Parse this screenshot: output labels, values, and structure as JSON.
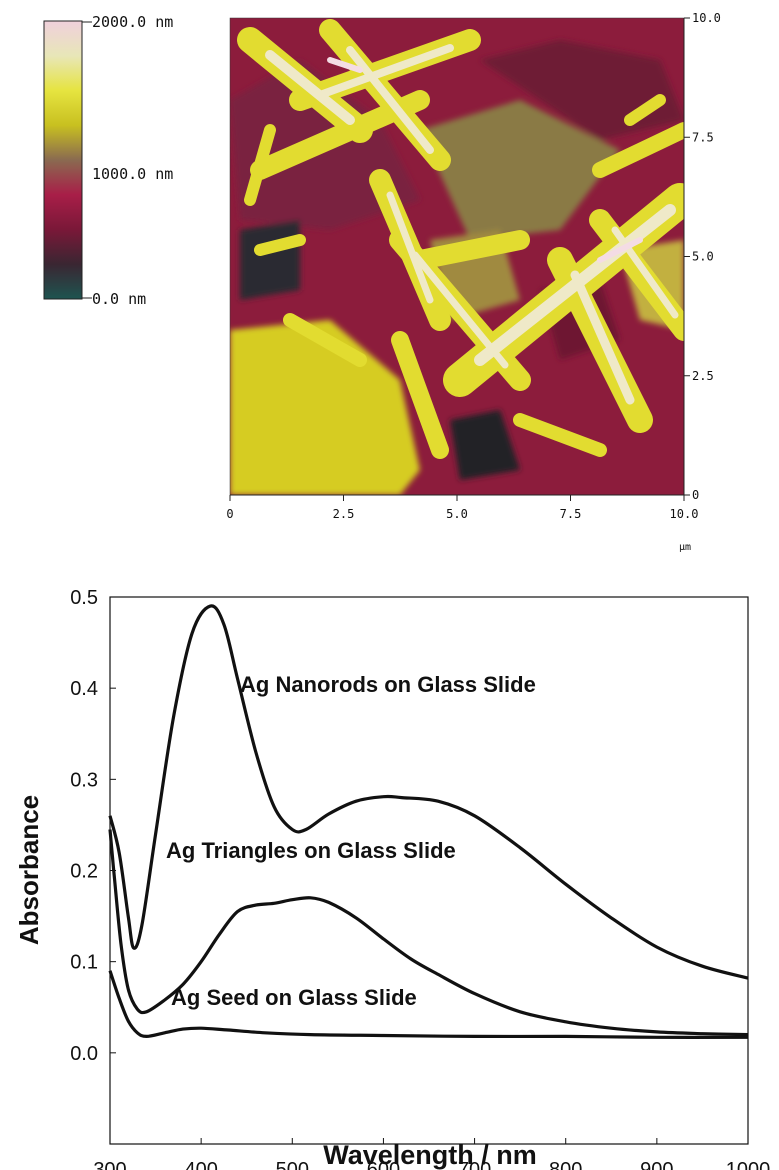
{
  "colorbar": {
    "labels": [
      "2000.0 nm",
      "1000.0 nm",
      "0.0 nm"
    ],
    "colors": [
      "#1e5450",
      "#3a2632",
      "#7a1838",
      "#a81e48",
      "#8a6a50",
      "#c8c020",
      "#e6e440",
      "#e8e6b8",
      "#f0d0dc"
    ]
  },
  "afm": {
    "x_ticks": [
      "0",
      "2.5",
      "5.0",
      "7.5",
      "10.0"
    ],
    "y_ticks": [
      "0",
      "2.5",
      "5.0",
      "7.5",
      "10.0"
    ],
    "x_unit": "μm",
    "colors": {
      "bg_red": "#8c1c3c",
      "bg_yellow": "#d8d020",
      "rod_yellow": "#e6e238",
      "rod_glow": "#f2eecc",
      "dark": "#2a2a30",
      "olive": "#8a7a40"
    }
  },
  "chart_data": {
    "type": "line",
    "xlabel": "Wavelength / nm",
    "ylabel": "Absorbance",
    "xlim": [
      300,
      1000
    ],
    "ylim": [
      -0.1,
      0.5
    ],
    "x_ticks": [
      "300",
      "400",
      "500",
      "600",
      "700",
      "800",
      "900",
      "1000"
    ],
    "y_ticks": [
      "0.5",
      "0.4",
      "0.3",
      "0.2",
      "0.1",
      "0.0"
    ],
    "series": [
      {
        "name": "Ag Nanorods on Glass Slide",
        "points": [
          [
            300,
            0.26
          ],
          [
            310,
            0.22
          ],
          [
            320,
            0.15
          ],
          [
            326,
            0.115
          ],
          [
            335,
            0.14
          ],
          [
            350,
            0.24
          ],
          [
            370,
            0.37
          ],
          [
            390,
            0.46
          ],
          [
            410,
            0.49
          ],
          [
            425,
            0.47
          ],
          [
            440,
            0.41
          ],
          [
            460,
            0.33
          ],
          [
            480,
            0.27
          ],
          [
            500,
            0.245
          ],
          [
            515,
            0.245
          ],
          [
            540,
            0.262
          ],
          [
            570,
            0.276
          ],
          [
            600,
            0.281
          ],
          [
            620,
            0.28
          ],
          [
            660,
            0.276
          ],
          [
            700,
            0.26
          ],
          [
            750,
            0.225
          ],
          [
            800,
            0.185
          ],
          [
            850,
            0.148
          ],
          [
            900,
            0.116
          ],
          [
            950,
            0.095
          ],
          [
            1000,
            0.082
          ]
        ]
      },
      {
        "name": "Ag Triangles on Glass Slide",
        "points": [
          [
            300,
            0.245
          ],
          [
            305,
            0.19
          ],
          [
            312,
            0.12
          ],
          [
            320,
            0.07
          ],
          [
            330,
            0.048
          ],
          [
            340,
            0.045
          ],
          [
            360,
            0.058
          ],
          [
            380,
            0.075
          ],
          [
            400,
            0.1
          ],
          [
            420,
            0.13
          ],
          [
            440,
            0.155
          ],
          [
            460,
            0.162
          ],
          [
            480,
            0.164
          ],
          [
            500,
            0.168
          ],
          [
            520,
            0.17
          ],
          [
            540,
            0.165
          ],
          [
            570,
            0.148
          ],
          [
            600,
            0.125
          ],
          [
            630,
            0.103
          ],
          [
            660,
            0.086
          ],
          [
            700,
            0.065
          ],
          [
            750,
            0.045
          ],
          [
            800,
            0.034
          ],
          [
            850,
            0.027
          ],
          [
            900,
            0.023
          ],
          [
            950,
            0.021
          ],
          [
            1000,
            0.02
          ]
        ]
      },
      {
        "name": "Ag Seed on Glass Slide",
        "points": [
          [
            300,
            0.09
          ],
          [
            310,
            0.06
          ],
          [
            320,
            0.035
          ],
          [
            330,
            0.022
          ],
          [
            340,
            0.018
          ],
          [
            360,
            0.022
          ],
          [
            380,
            0.026
          ],
          [
            400,
            0.027
          ],
          [
            430,
            0.025
          ],
          [
            470,
            0.022
          ],
          [
            520,
            0.02
          ],
          [
            600,
            0.019
          ],
          [
            700,
            0.018
          ],
          [
            800,
            0.018
          ],
          [
            900,
            0.017
          ],
          [
            1000,
            0.017
          ]
        ]
      }
    ]
  }
}
